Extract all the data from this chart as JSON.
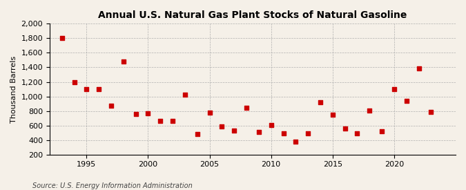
{
  "title": "Annual U.S. Natural Gas Plant Stocks of Natural Gasoline",
  "ylabel": "Thousand Barrels",
  "source": "Source: U.S. Energy Information Administration",
  "background_color": "#f5f0e8",
  "plot_background": "#f5f0e8",
  "marker_color": "#cc0000",
  "years": [
    1993,
    1994,
    1995,
    1996,
    1997,
    1998,
    1999,
    2000,
    2001,
    2002,
    2003,
    2004,
    2005,
    2006,
    2007,
    2008,
    2009,
    2010,
    2011,
    2012,
    2013,
    2014,
    2015,
    2016,
    2017,
    2018,
    2019,
    2020,
    2021,
    2022,
    2023
  ],
  "values": [
    1800,
    1200,
    1100,
    1100,
    870,
    1480,
    760,
    770,
    660,
    660,
    1020,
    480,
    780,
    590,
    530,
    840,
    510,
    610,
    490,
    380,
    490,
    920,
    750,
    560,
    490,
    810,
    520,
    1100,
    940,
    1390,
    790
  ],
  "xlim": [
    1992,
    2025
  ],
  "ylim": [
    200,
    2000
  ],
  "yticks": [
    200,
    400,
    600,
    800,
    1000,
    1200,
    1400,
    1600,
    1800,
    2000
  ],
  "xticks": [
    1995,
    2000,
    2005,
    2010,
    2015,
    2020
  ]
}
